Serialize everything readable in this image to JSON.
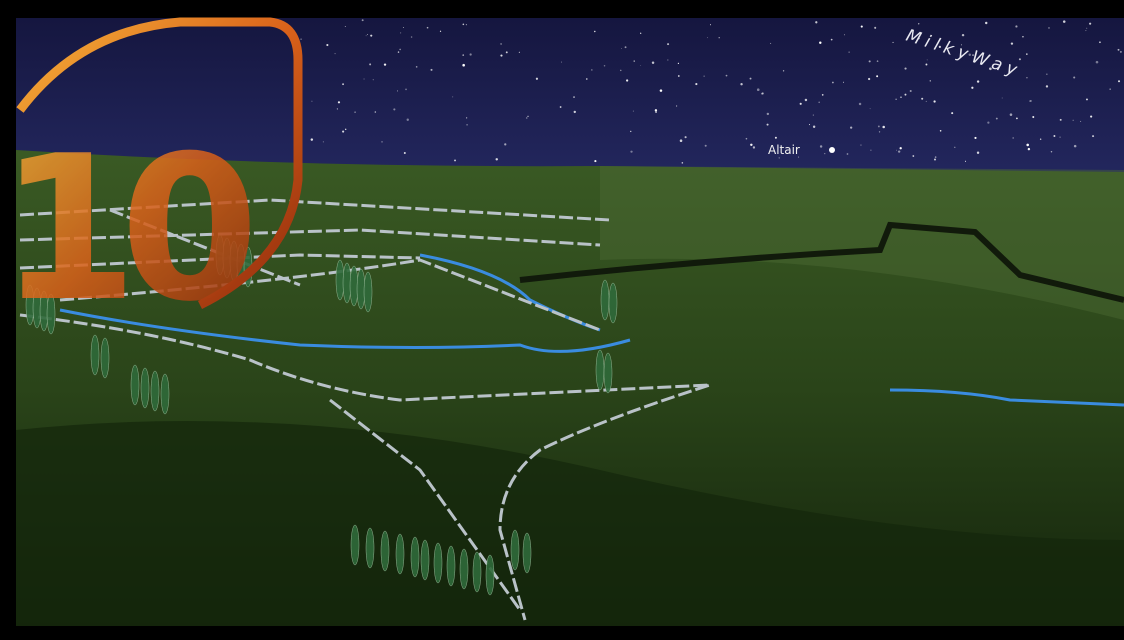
{
  "labels": {
    "badge": "10",
    "milky_way": "MilkyWay",
    "altair": "Altair"
  }
}
